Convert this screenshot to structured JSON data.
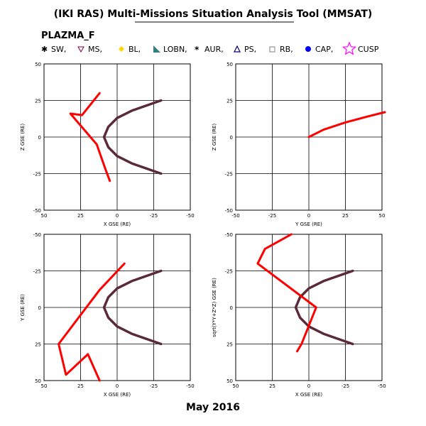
{
  "title": "(IKI RAS) Multi-Missions Situation Analysis Tool (MMSAT)",
  "mission": "PLAZMA_F",
  "footer_date": "May 2016",
  "legend": [
    {
      "label": "SW,",
      "symbol": "star-red",
      "color": "#ff0000"
    },
    {
      "label": "MS,",
      "symbol": "triangle-down",
      "color": "#800040"
    },
    {
      "label": "BL,",
      "symbol": "diamond",
      "color": "#ffd700"
    },
    {
      "label": "LOBN,",
      "symbol": "wedge",
      "color": "#2f7f7f"
    },
    {
      "label": "AUR,",
      "symbol": "asterisk",
      "color": "#00c0c0"
    },
    {
      "label": "PS,",
      "symbol": "triangle-up",
      "color": "#000080"
    },
    {
      "label": "RB,",
      "symbol": "square",
      "color": "#808080"
    },
    {
      "label": "CAP,",
      "symbol": "circle",
      "color": "#0000ff"
    },
    {
      "label": "CUSP",
      "symbol": "star-outline",
      "color": "#ff00ff"
    }
  ],
  "colors": {
    "orbit": "#ff0000",
    "boundary": "#5a2a3a",
    "grid": "#000000"
  },
  "chart_data": [
    {
      "type": "line",
      "xlabel": "X GSE (RE)",
      "ylabel": "Z GSE (RE)",
      "xlim": [
        50,
        -50
      ],
      "ylim": [
        -50,
        50
      ],
      "xticks": [
        50,
        25,
        0,
        -25,
        -50
      ],
      "yticks": [
        -50,
        -25,
        0,
        25,
        50
      ],
      "grid": true,
      "series": [
        {
          "values": [
            [
              -30,
              25
            ],
            [
              -10,
              18
            ],
            [
              0,
              13
            ],
            [
              6,
              7
            ],
            [
              9,
              0
            ],
            [
              6,
              -7
            ],
            [
              0,
              -13
            ],
            [
              -10,
              -18
            ],
            [
              -30,
              -25
            ]
          ]
        },
        {
          "values": [
            [
              12,
              30
            ],
            [
              24,
              15
            ],
            [
              32,
              16
            ],
            [
              14,
              -5
            ],
            [
              8,
              -22
            ],
            [
              5,
              -30
            ]
          ]
        }
      ]
    },
    {
      "type": "line",
      "xlabel": "Y GSE (RE)",
      "ylabel": "Z GSE (RE)",
      "xlim": [
        -50,
        50
      ],
      "ylim": [
        -50,
        50
      ],
      "xticks": [
        -50,
        -25,
        0,
        25,
        50
      ],
      "yticks": [
        -50,
        -25,
        0,
        25,
        50
      ],
      "grid": true,
      "series": [
        {
          "values": [
            [
              0,
              0
            ],
            [
              10,
              5
            ],
            [
              25,
              10
            ],
            [
              40,
              14
            ],
            [
              52,
              17
            ]
          ]
        }
      ]
    },
    {
      "type": "line",
      "xlabel": "X GSE (RE)",
      "ylabel": "Y GSE (RE)",
      "xlim": [
        50,
        -50
      ],
      "ylim": [
        50,
        -50
      ],
      "xticks": [
        50,
        25,
        0,
        -25,
        -50
      ],
      "yticks": [
        -50,
        -25,
        0,
        25,
        50
      ],
      "grid": true,
      "series": [
        {
          "values": [
            [
              -30,
              -25
            ],
            [
              -10,
              -18
            ],
            [
              0,
              -13
            ],
            [
              6,
              -7
            ],
            [
              9,
              0
            ],
            [
              6,
              7
            ],
            [
              0,
              13
            ],
            [
              -10,
              18
            ],
            [
              -30,
              25
            ]
          ]
        },
        {
          "values": [
            [
              -5,
              -30
            ],
            [
              12,
              -12
            ],
            [
              40,
              25
            ],
            [
              35,
              46
            ],
            [
              20,
              32
            ],
            [
              12,
              50
            ]
          ]
        }
      ]
    },
    {
      "type": "line",
      "xlabel": "X GSE (RE)",
      "ylabel": "sqrt(Y*Y+Z*Z) GSE (RE)",
      "xlim": [
        50,
        -50
      ],
      "ylim": [
        50,
        -50
      ],
      "xticks": [
        50,
        25,
        0,
        -25,
        -50
      ],
      "yticks": [
        -50,
        -25,
        0,
        25,
        50
      ],
      "grid": true,
      "series": [
        {
          "values": [
            [
              -30,
              -25
            ],
            [
              -10,
              -18
            ],
            [
              0,
              -13
            ],
            [
              6,
              -7
            ],
            [
              9,
              0
            ],
            [
              6,
              7
            ],
            [
              0,
              13
            ],
            [
              -10,
              18
            ],
            [
              -30,
              25
            ]
          ]
        },
        {
          "values": [
            [
              12,
              -50
            ],
            [
              30,
              -40
            ],
            [
              35,
              -30
            ],
            [
              -5,
              0
            ],
            [
              5,
              25
            ],
            [
              8,
              30
            ]
          ]
        }
      ]
    }
  ]
}
